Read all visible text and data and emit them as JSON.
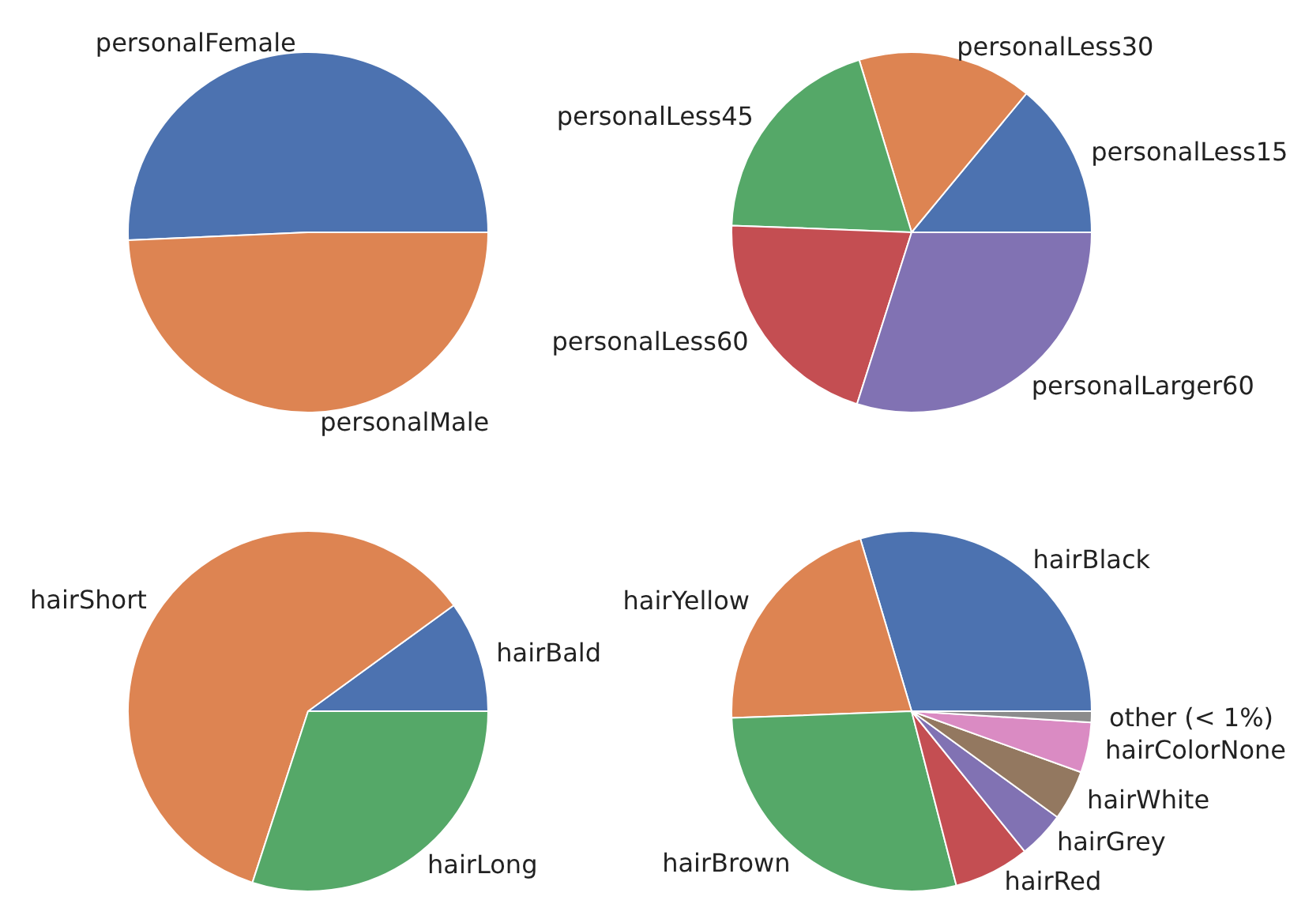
{
  "chart_data": [
    {
      "type": "pie",
      "categories": [
        "personalFemale",
        "personalMale"
      ],
      "values": [
        50.7,
        49.3
      ],
      "colors": [
        "#4c72b0",
        "#dd8452"
      ]
    },
    {
      "type": "pie",
      "categories": [
        "personalLess15",
        "personalLess30",
        "personalLess45",
        "personalLess60",
        "personalLarger60"
      ],
      "values": [
        14,
        15.7,
        19.7,
        20.7,
        29.9
      ],
      "colors": [
        "#4c72b0",
        "#dd8452",
        "#55a868",
        "#c44e52",
        "#8172b3"
      ]
    },
    {
      "type": "pie",
      "categories": [
        "hairBald",
        "hairShort",
        "hairLong"
      ],
      "values": [
        10,
        60,
        30
      ],
      "colors": [
        "#4c72b0",
        "#dd8452",
        "#55a868"
      ]
    },
    {
      "type": "pie",
      "categories": [
        "hairBlack",
        "hairYellow",
        "hairBrown",
        "hairRed",
        "hairGrey",
        "hairWhite",
        "hairColorNone",
        "other (< 1%)"
      ],
      "values": [
        29.6,
        21,
        28.4,
        6.8,
        4.2,
        4.5,
        4.5,
        1
      ],
      "colors": [
        "#4c72b0",
        "#dd8452",
        "#55a868",
        "#c44e52",
        "#8172b3",
        "#937860",
        "#da8bc3",
        "#8c8c8c"
      ]
    }
  ]
}
